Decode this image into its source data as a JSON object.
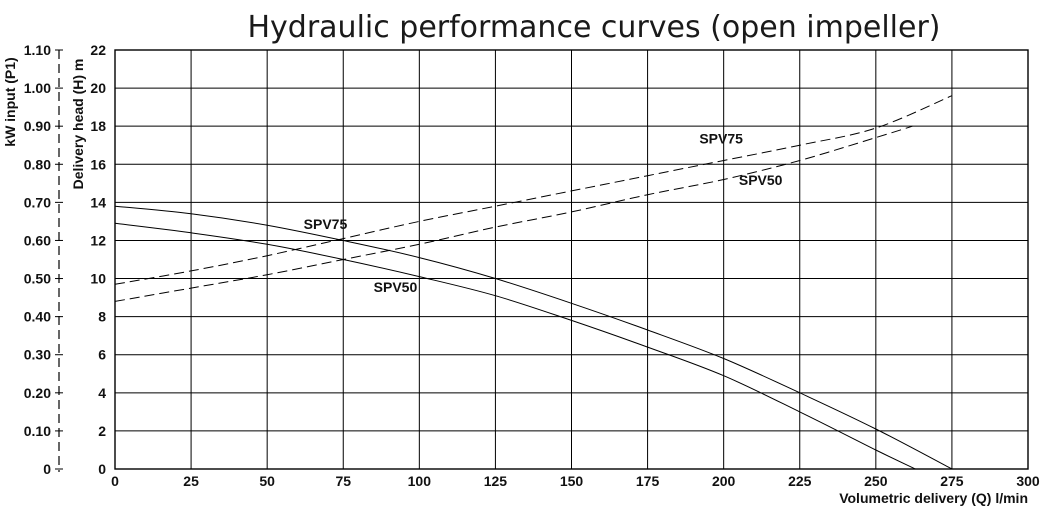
{
  "chart_data": {
    "type": "line",
    "title": "Hydraulic performance curves (open impeller)",
    "xlabel": "Volumetric delivery (Q) l/min",
    "ylabel": "Delivery head (H) m",
    "y2label": "kW input (P1)",
    "xlim": [
      0,
      300
    ],
    "ylim": [
      0,
      22
    ],
    "y2lim": [
      0,
      1.1
    ],
    "x_ticks": [
      "0",
      "25",
      "50",
      "75",
      "100",
      "125",
      "150",
      "175",
      "200",
      "225",
      "250",
      "275",
      "300"
    ],
    "y_ticks": [
      "0",
      "2",
      "4",
      "6",
      "8",
      "10",
      "12",
      "14",
      "16",
      "18",
      "20",
      "22"
    ],
    "y2_ticks": [
      "0",
      "0.10",
      "0.20",
      "0.30",
      "0.40",
      "0.50",
      "0.60",
      "0.70",
      "0.80",
      "0.90",
      "1.00",
      "1.10"
    ],
    "grid": true,
    "series": [
      {
        "name": "SPV75",
        "curve": "head",
        "axis": "H",
        "style": "solid",
        "x": [
          0,
          25,
          50,
          75,
          100,
          125,
          150,
          175,
          200,
          225,
          250,
          275
        ],
        "y": [
          13.8,
          13.4,
          12.8,
          12.0,
          11.1,
          10.0,
          8.7,
          7.3,
          5.8,
          4.0,
          2.1,
          0
        ]
      },
      {
        "name": "SPV50",
        "curve": "head",
        "axis": "H",
        "style": "solid",
        "x": [
          0,
          25,
          50,
          75,
          100,
          125,
          150,
          175,
          200,
          225,
          250,
          263
        ],
        "y": [
          12.9,
          12.4,
          11.8,
          11.0,
          10.1,
          9.1,
          7.8,
          6.4,
          4.9,
          3.0,
          1.0,
          0
        ]
      },
      {
        "name": "SPV75",
        "curve": "power",
        "axis": "P1",
        "style": "dashed",
        "x": [
          0,
          25,
          50,
          75,
          100,
          125,
          150,
          175,
          200,
          225,
          250,
          275
        ],
        "y": [
          0.485,
          0.52,
          0.56,
          0.605,
          0.65,
          0.69,
          0.73,
          0.77,
          0.81,
          0.85,
          0.895,
          0.98
        ]
      },
      {
        "name": "SPV50",
        "curve": "power",
        "axis": "P1",
        "style": "dashed",
        "x": [
          0,
          25,
          50,
          75,
          100,
          125,
          150,
          175,
          200,
          225,
          250,
          262
        ],
        "y": [
          0.44,
          0.475,
          0.51,
          0.55,
          0.59,
          0.635,
          0.675,
          0.72,
          0.76,
          0.81,
          0.87,
          0.9
        ]
      }
    ],
    "annotations": [
      {
        "text": "SPV75",
        "x": 62,
        "y": 12.6,
        "axis": "H"
      },
      {
        "text": "SPV50",
        "x": 85,
        "y": 9.3,
        "axis": "H"
      },
      {
        "text": "SPV75",
        "x": 192,
        "y": 0.855,
        "axis": "P1"
      },
      {
        "text": "SPV50",
        "x": 205,
        "y": 0.745,
        "axis": "P1"
      }
    ]
  }
}
